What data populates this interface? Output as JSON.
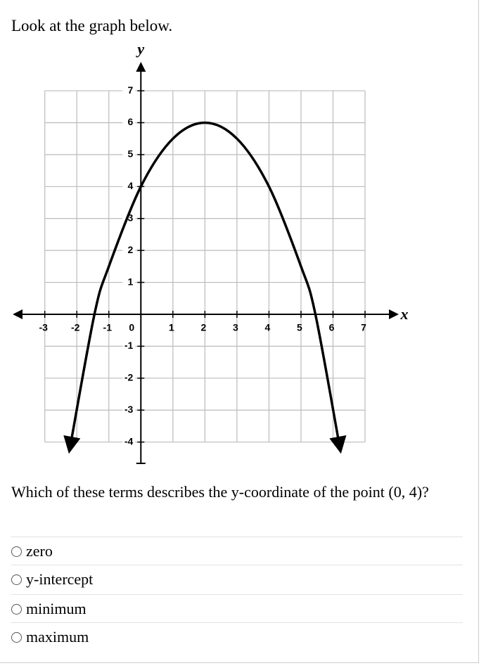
{
  "header": {
    "title": "Look at the graph below."
  },
  "chart_data": {
    "type": "line",
    "x_label": "x",
    "y_label": "y",
    "x": [
      -2.2,
      -1.45,
      -1,
      0,
      1,
      2,
      3,
      4,
      5,
      5.45,
      6.2
    ],
    "values": [
      -4.1,
      0,
      1.5,
      4,
      5.5,
      6,
      5.5,
      4,
      1.5,
      0,
      -4.1
    ],
    "color": "#000000",
    "xlim": [
      -3.85,
      7.9
    ],
    "ylim": [
      -4.8,
      7.75
    ],
    "xticks": [
      -3,
      -2,
      -1,
      0,
      1,
      2,
      3,
      4,
      5,
      6,
      7
    ],
    "yticks": [
      -4,
      -3,
      -2,
      -1,
      1,
      2,
      3,
      4,
      5,
      6,
      7
    ],
    "grid": true
  },
  "question": {
    "text": "Which of these terms describes the y-coordinate of the point (0, 4)?"
  },
  "options": [
    "zero",
    "y-intercept",
    "minimum",
    "maximum"
  ]
}
